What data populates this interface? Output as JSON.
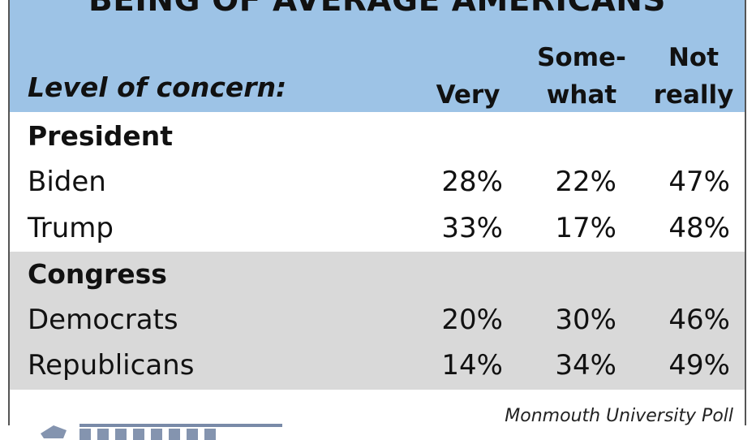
{
  "chart_data": {
    "type": "table",
    "title": "BEING OF AVERAGE AMERICANS",
    "row_header": "Level of concern:",
    "columns": [
      {
        "line1": "",
        "line2": "Very"
      },
      {
        "line1": "Some-",
        "line2": "what"
      },
      {
        "line1": "Not",
        "line2": "really"
      }
    ],
    "groups": [
      {
        "name": "President",
        "rows": [
          {
            "label": "Biden",
            "values": [
              "28%",
              "22%",
              "47%"
            ]
          },
          {
            "label": "Trump",
            "values": [
              "33%",
              "17%",
              "48%"
            ]
          }
        ]
      },
      {
        "name": "Congress",
        "rows": [
          {
            "label": "Democrats",
            "values": [
              "20%",
              "30%",
              "46%"
            ]
          },
          {
            "label": "Republicans",
            "values": [
              "14%",
              "34%",
              "49%"
            ]
          }
        ]
      }
    ]
  },
  "footer": {
    "source": "Monmouth University Poll",
    "logo_icon": "monmouth-logo-icon"
  },
  "colors": {
    "header": "#9dc3e6",
    "gray_band": "#d9d9d9",
    "logo": "#1f3c6e"
  }
}
